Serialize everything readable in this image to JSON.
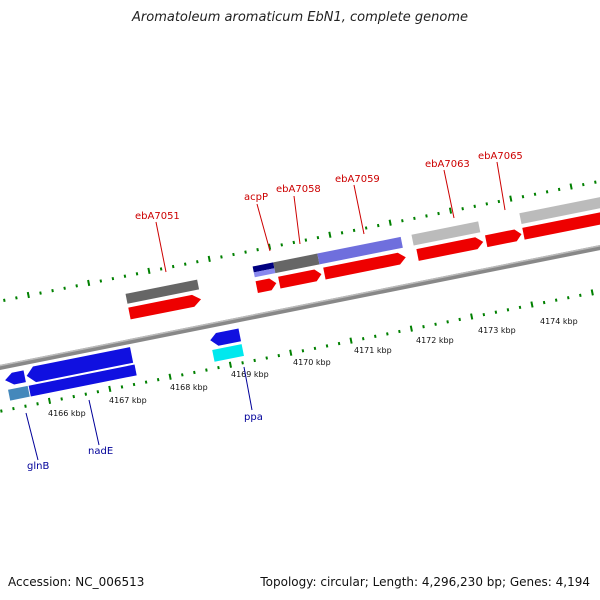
{
  "title": "Aromatoleum aromaticum EbN1, complete genome",
  "footer": {
    "accession": "Accession: NC_006513",
    "topology": "Topology: circular; Length: 4,296,230 bp; Genes: 4,194"
  },
  "colors": {
    "forward_cds": "#f00000",
    "reverse_cds": "#1010e0",
    "forward_label": "#cc0000",
    "reverse_label": "#000099",
    "tick": "#008000",
    "backbone": "#888888"
  },
  "scale": {
    "unit": "kbp",
    "labels": [
      "4166 kbp",
      "4167 kbp",
      "4168 kbp",
      "4169 kbp",
      "4170 kbp",
      "4171 kbp",
      "4172 kbp",
      "4173 kbp",
      "4174 kbp"
    ]
  },
  "genes": [
    {
      "name": "ebA7051",
      "strand": "+",
      "color": "#cc0000"
    },
    {
      "name": "acpP",
      "strand": "+",
      "color": "#cc0000"
    },
    {
      "name": "ebA7058",
      "strand": "+",
      "color": "#cc0000"
    },
    {
      "name": "ebA7059",
      "strand": "+",
      "color": "#cc0000"
    },
    {
      "name": "ebA7063",
      "strand": "+",
      "color": "#cc0000"
    },
    {
      "name": "ebA7065",
      "strand": "+",
      "color": "#cc0000"
    },
    {
      "name": "glnB",
      "strand": "-",
      "color": "#000099"
    },
    {
      "name": "nadE",
      "strand": "-",
      "color": "#000099"
    },
    {
      "name": "ppa",
      "strand": "-",
      "color": "#000099"
    }
  ]
}
